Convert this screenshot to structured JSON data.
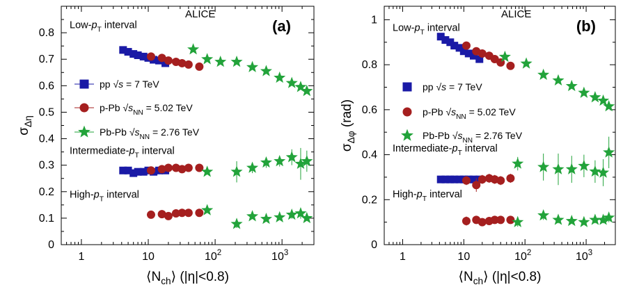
{
  "chart_data": [
    {
      "type": "scatter",
      "panel_label": "(a)",
      "experiment": "ALICE",
      "xlabel": "⟨N_ch⟩ (|η|<0.8)",
      "ylabel": "σ_Δη",
      "xscale": "log",
      "xlim": [
        0.5,
        3000
      ],
      "ylim": [
        0,
        0.9
      ],
      "x_ticks": [
        "1",
        "10",
        "10^2",
        "10^3"
      ],
      "y_ticks": [
        "0",
        "0.1",
        "0.2",
        "0.3",
        "0.4",
        "0.5",
        "0.6",
        "0.7",
        "0.8"
      ],
      "interval_labels": [
        {
          "text": "Low-p_T interval",
          "y": 0.83
        },
        {
          "text": "Intermediate-p_T interval",
          "y": 0.355
        },
        {
          "text": "High-p_T interval",
          "y": 0.19
        }
      ],
      "legend": [
        {
          "label": "pp √s = 7 TeV",
          "series": "pp"
        },
        {
          "label": "p-Pb √s_NN = 5.02 TeV",
          "series": "pPb"
        },
        {
          "label": "Pb-Pb √s_NN = 2.76 TeV",
          "series": "PbPb"
        }
      ],
      "series": [
        {
          "name": "pp",
          "marker": "square",
          "color": "#1a1aa6",
          "groups": [
            {
              "interval": "Low-pT",
              "x": [
                4.2,
                5.0,
                6.0,
                7.0,
                8.5,
                10,
                12,
                14.5,
                18
              ],
              "y": [
                0.735,
                0.728,
                0.72,
                0.715,
                0.71,
                0.705,
                0.698,
                0.695,
                0.685
              ]
            },
            {
              "interval": "Intermediate-pT",
              "x": [
                4.2,
                5.0,
                6.0,
                7.0,
                8.5,
                10,
                12,
                14.5,
                18
              ],
              "y": [
                0.28,
                0.28,
                0.27,
                0.275,
                0.275,
                0.28,
                0.275,
                0.28,
                0.28
              ]
            }
          ]
        },
        {
          "name": "pPb",
          "marker": "circle",
          "color": "#a51f1f",
          "groups": [
            {
              "interval": "Low-pT",
              "x": [
                11,
                16,
                20,
                26,
                32,
                40,
                58
              ],
              "y": [
                0.71,
                0.705,
                0.695,
                0.69,
                0.685,
                0.68,
                0.672
              ]
            },
            {
              "interval": "Intermediate-pT",
              "x": [
                11,
                16,
                20,
                26,
                32,
                40,
                58
              ],
              "y": [
                0.28,
                0.285,
                0.29,
                0.29,
                0.285,
                0.29,
                0.29
              ]
            },
            {
              "interval": "High-pT",
              "x": [
                11,
                16,
                20,
                26,
                32,
                40,
                58
              ],
              "y": [
                0.113,
                0.115,
                0.108,
                0.118,
                0.12,
                0.12,
                0.12
              ]
            }
          ]
        },
        {
          "name": "PbPb",
          "marker": "star",
          "color": "#22a33a",
          "groups": [
            {
              "interval": "Low-pT",
              "x": [
                47,
                76,
                120,
                210,
                360,
                580,
                920,
                1400,
                1900,
                2350
              ],
              "y": [
                0.737,
                0.7,
                0.69,
                0.69,
                0.67,
                0.655,
                0.63,
                0.61,
                0.595,
                0.58
              ]
            },
            {
              "interval": "Intermediate-pT",
              "x": [
                76,
                210,
                360,
                580,
                920,
                1400,
                1900,
                2350
              ],
              "y": [
                0.275,
                0.275,
                0.29,
                0.31,
                0.315,
                0.33,
                0.305,
                0.315
              ],
              "err": [
                0.01,
                0.04,
                0.02,
                0.02,
                0.02,
                0.03,
                0.06,
                0.04
              ]
            },
            {
              "interval": "High-pT",
              "x": [
                76,
                210,
                360,
                580,
                920,
                1400,
                1900,
                2350
              ],
              "y": [
                0.13,
                0.078,
                0.107,
                0.097,
                0.103,
                0.113,
                0.118,
                0.1
              ],
              "err": [
                0.01,
                0.015,
                0.01,
                0.01,
                0.01,
                0.015,
                0.02,
                0.01
              ]
            }
          ]
        }
      ]
    },
    {
      "type": "scatter",
      "panel_label": "(b)",
      "experiment": "ALICE",
      "xlabel": "⟨N_ch⟩ (|η|<0.8)",
      "ylabel": "σ_Δφ (rad)",
      "xscale": "log",
      "xlim": [
        0.5,
        3000
      ],
      "ylim": [
        0,
        1.06
      ],
      "x_ticks": [
        "1",
        "10",
        "10^2",
        "10^3"
      ],
      "y_ticks": [
        "0",
        "0.2",
        "0.4",
        "0.6",
        "0.8",
        "1"
      ],
      "interval_labels": [
        {
          "text": "Low-p_T interval",
          "y": 0.965
        },
        {
          "text": "Intermediate-p_T interval",
          "y": 0.43
        },
        {
          "text": "High-p_T interval",
          "y": 0.225
        }
      ],
      "legend": [
        {
          "label": "pp √s = 7 TeV",
          "series": "pp"
        },
        {
          "label": "p-Pb √s_NN = 5.02 TeV",
          "series": "pPb"
        },
        {
          "label": "Pb-Pb √s_NN = 2.76 TeV",
          "series": "PbPb"
        }
      ],
      "series": [
        {
          "name": "pp",
          "marker": "square",
          "color": "#1a1aa6",
          "groups": [
            {
              "interval": "Low-pT",
              "x": [
                4.2,
                5.0,
                6.0,
                7.0,
                8.5,
                10,
                12,
                14.5,
                18
              ],
              "y": [
                0.925,
                0.91,
                0.9,
                0.885,
                0.875,
                0.86,
                0.85,
                0.84,
                0.825
              ]
            },
            {
              "interval": "Intermediate-pT",
              "x": [
                4.2,
                5.0,
                6.0,
                7.0,
                8.5,
                10,
                12,
                14.5,
                18
              ],
              "y": [
                0.29,
                0.29,
                0.29,
                0.29,
                0.29,
                0.29,
                0.29,
                0.29,
                0.29
              ]
            }
          ]
        },
        {
          "name": "pPb",
          "marker": "circle",
          "color": "#a51f1f",
          "groups": [
            {
              "interval": "Low-pT",
              "x": [
                11,
                16,
                20,
                26,
                32,
                40,
                58
              ],
              "y": [
                0.885,
                0.86,
                0.85,
                0.84,
                0.825,
                0.81,
                0.795
              ]
            },
            {
              "interval": "Intermediate-pT",
              "x": [
                11,
                16,
                20,
                26,
                32,
                40,
                58
              ],
              "y": [
                0.285,
                0.265,
                0.29,
                0.295,
                0.29,
                0.285,
                0.295
              ],
              "err": [
                0.02,
                0.03,
                0.02,
                0.02,
                0.02,
                0.02,
                0.02
              ]
            },
            {
              "interval": "High-pT",
              "x": [
                11,
                16,
                20,
                26,
                32,
                40,
                58
              ],
              "y": [
                0.105,
                0.11,
                0.1,
                0.105,
                0.11,
                0.11,
                0.11
              ],
              "err": [
                0.02,
                0.01,
                0.01,
                0.01,
                0.01,
                0.01,
                0.01
              ]
            }
          ]
        },
        {
          "name": "PbPb",
          "marker": "star",
          "color": "#22a33a",
          "groups": [
            {
              "interval": "Low-pT",
              "x": [
                47,
                105,
                200,
                350,
                580,
                920,
                1400,
                1900,
                2350
              ],
              "y": [
                0.835,
                0.805,
                0.755,
                0.73,
                0.705,
                0.675,
                0.655,
                0.64,
                0.615
              ]
            },
            {
              "interval": "Intermediate-pT",
              "x": [
                76,
                200,
                350,
                580,
                920,
                1400,
                1900,
                2350
              ],
              "y": [
                0.36,
                0.345,
                0.335,
                0.335,
                0.35,
                0.325,
                0.32,
                0.41
              ],
              "err": [
                0.03,
                0.06,
                0.07,
                0.06,
                0.05,
                0.05,
                0.06,
                0.07
              ]
            },
            {
              "interval": "High-pT",
              "x": [
                76,
                200,
                350,
                580,
                920,
                1400,
                1900,
                2350
              ],
              "y": [
                0.1,
                0.13,
                0.11,
                0.105,
                0.1,
                0.11,
                0.11,
                0.12
              ],
              "err": [
                0.02,
                0.02,
                0.015,
                0.01,
                0.01,
                0.015,
                0.015,
                0.02
              ]
            }
          ]
        }
      ]
    }
  ]
}
